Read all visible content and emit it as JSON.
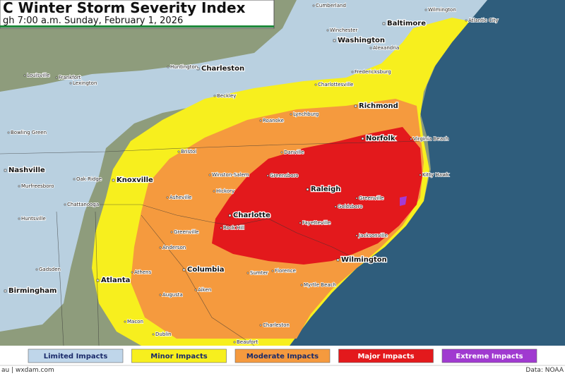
{
  "header": {
    "title": "C Winter Storm Severity Index",
    "subtitle": "gh 7:00 a.m. Sunday, February 1, 2026"
  },
  "cities_major": [
    "Baltimore",
    "Washington",
    "Charleston",
    "Richmond",
    "Norfolk",
    "Nashville",
    "Knoxville",
    "Raleigh",
    "Charlotte",
    "Wilmington",
    "Columbia",
    "Atlanta",
    "Birmingham"
  ],
  "cities_minor": [
    "Cumberland",
    "Winchester",
    "Alexandria",
    "Wilmington",
    "Atlantic City",
    "Huntington",
    "Louisville",
    "Frankfort",
    "Lexington",
    "Fredericksburg",
    "Charlottesville",
    "Beckley",
    "Lynchburg",
    "Roanoke",
    "Bowling Green",
    "Virginia Beach",
    "Bristol",
    "Danville",
    "Oak Ridge",
    "Winston-Salem",
    "Greensboro",
    "Kitty Hawk",
    "Murfreesboro",
    "Hickory",
    "Asheville",
    "Greenville",
    "Goldsboro",
    "Chattanooga",
    "Huntsville",
    "Greenville",
    "Rock Hill",
    "Fayetteville",
    "Jacksonville",
    "Anderson",
    "Gadsden",
    "Athens",
    "Sumter",
    "Florence",
    "Myrtle Beach",
    "Augusta",
    "Aiken",
    "Macon",
    "Dublin",
    "Charleston",
    "Beaufort"
  ],
  "legend": [
    "Limited Impacts",
    "Minor Impacts",
    "Moderate Impacts",
    "Major Impacts",
    "Extreme Impacts"
  ],
  "footer": {
    "left": "au | wxdam.com",
    "right": "Data: NOAA"
  }
}
